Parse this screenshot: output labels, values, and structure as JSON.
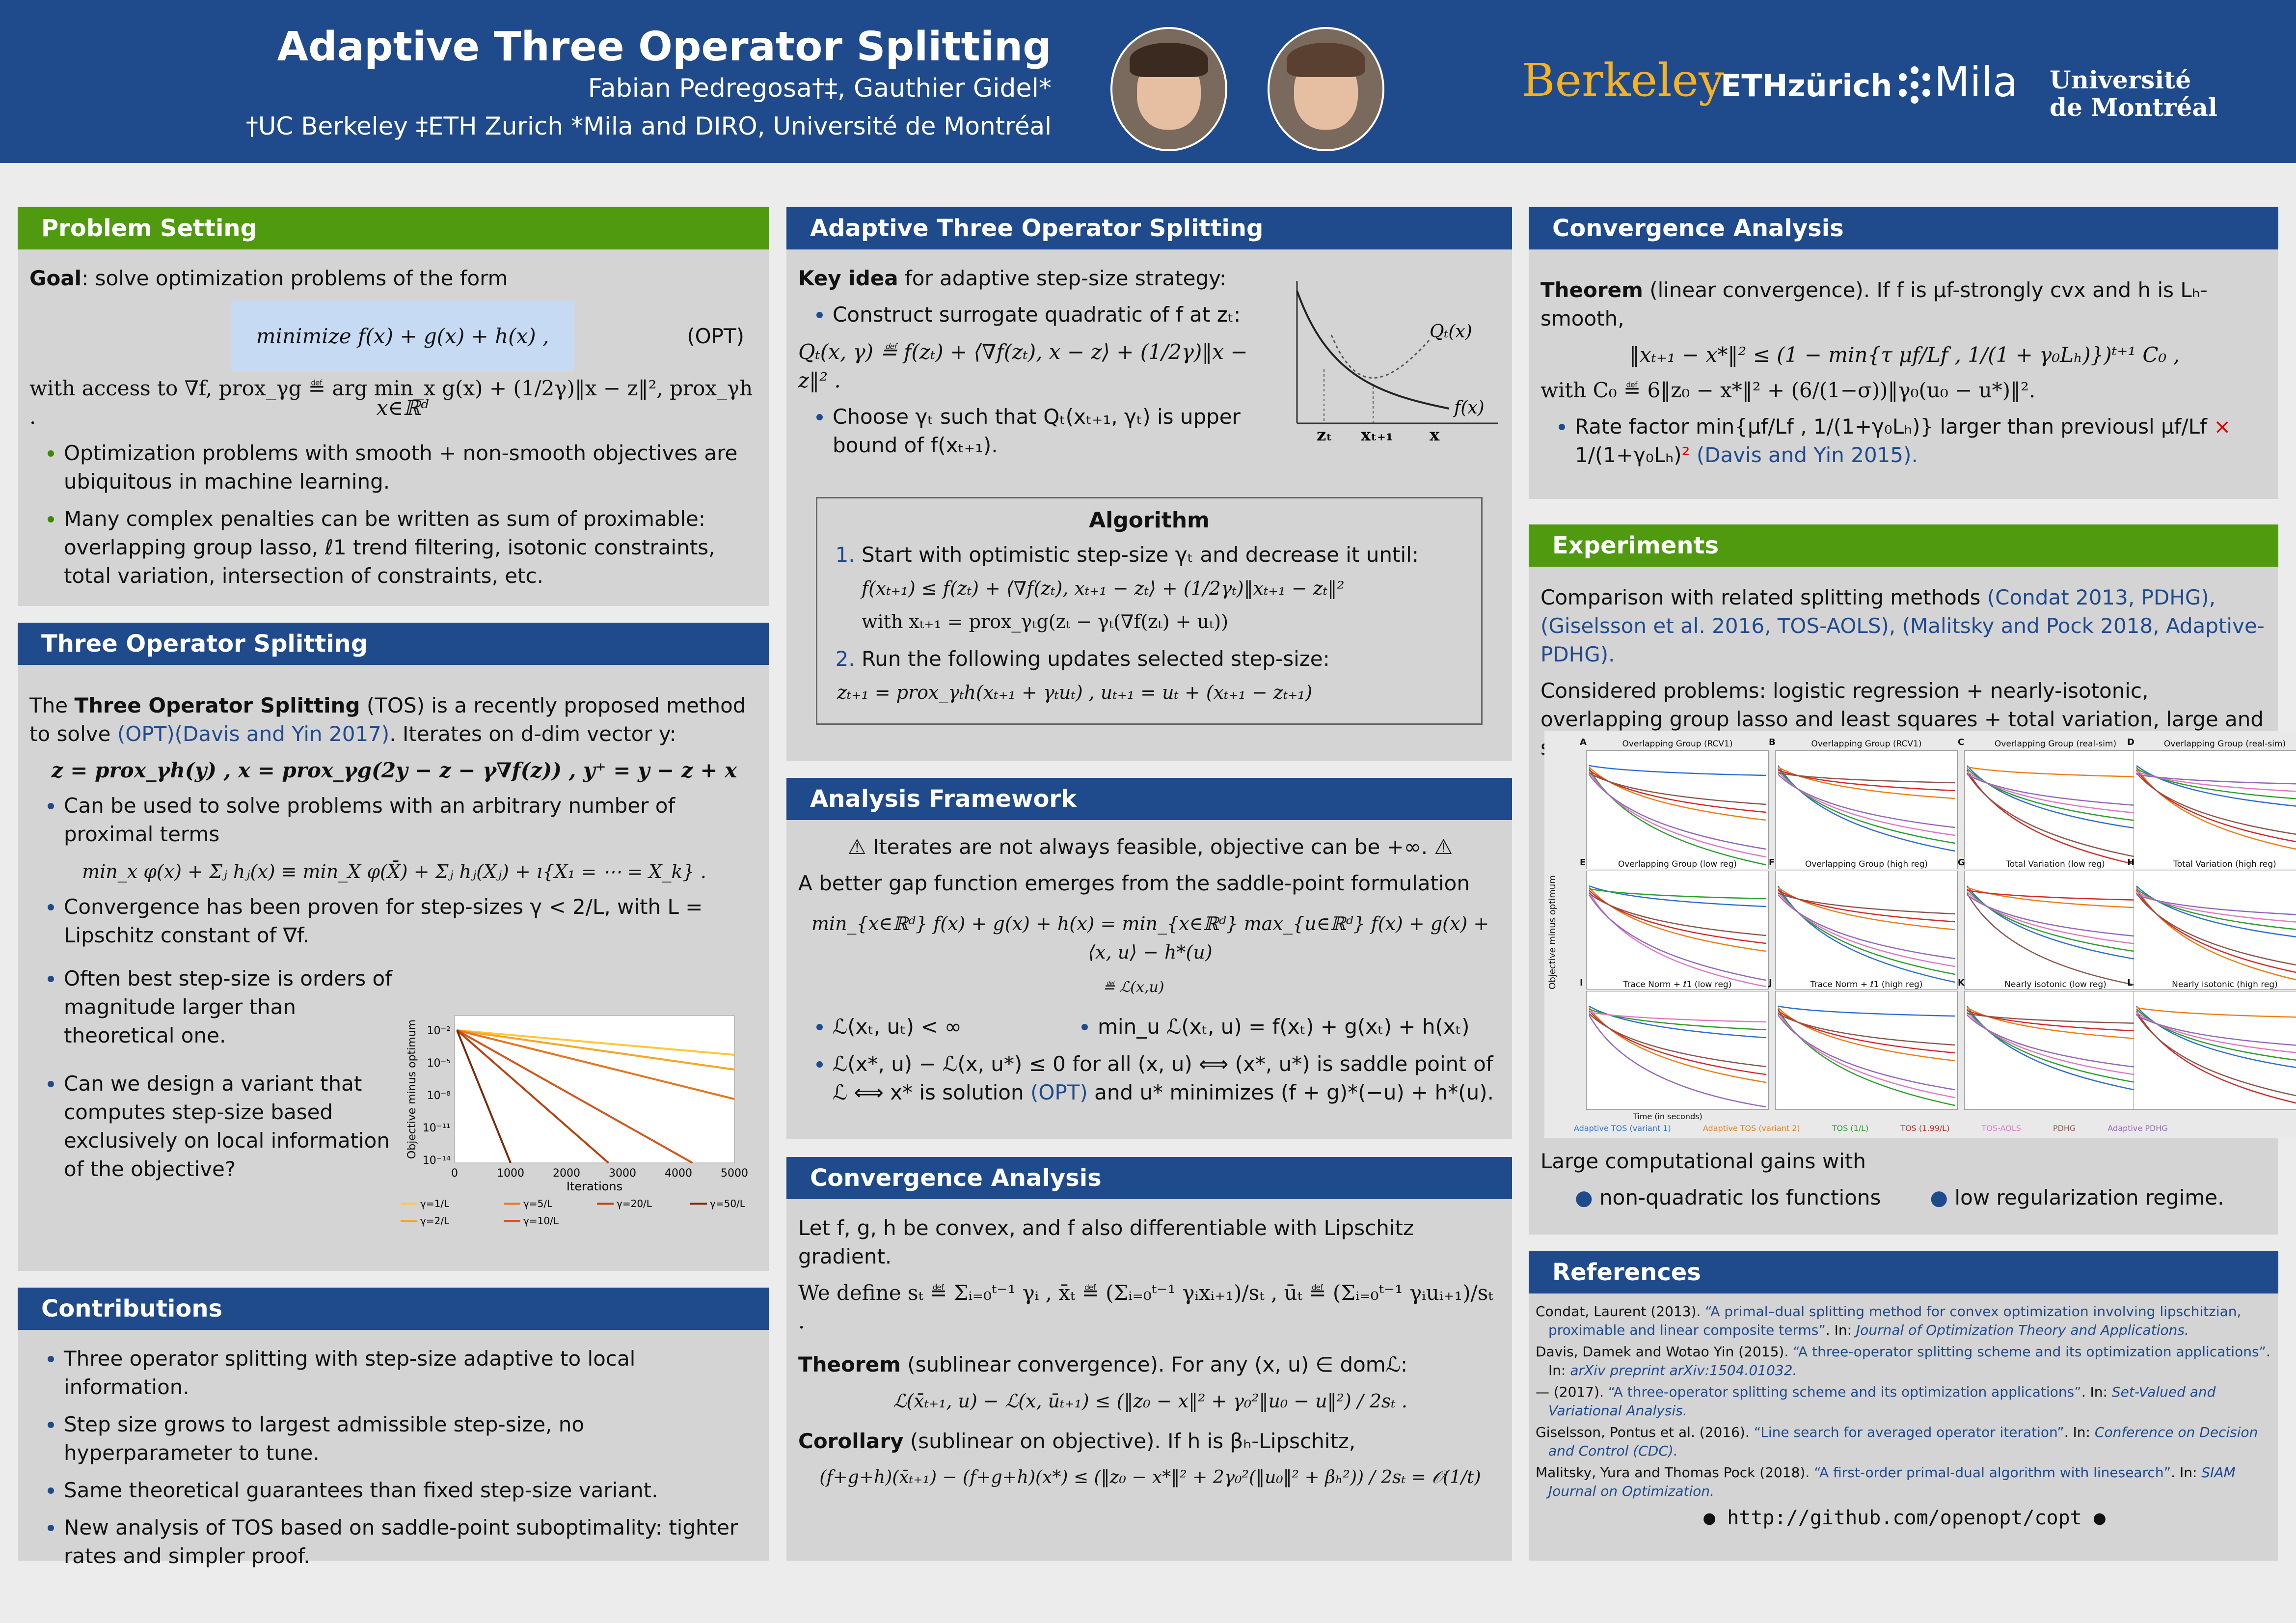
{
  "header": {
    "title": "Adaptive Three Operator Splitting",
    "authors": "Fabian Pedregosa†‡, Gauthier Gidel*",
    "affiliations": "†UC Berkeley ‡ETH Zurich *Mila and DIRO, Université de Montréal",
    "logos": {
      "berkeley": "Berkeley",
      "eth": "ETHzürich",
      "mila": "Mila",
      "udm_line1": "Université",
      "udm_line2": "de Montréal"
    }
  },
  "problem_setting": {
    "title": "Problem Setting",
    "goal_label": "Goal",
    "goal_text": ": solve optimization problems of the form",
    "opt_formula": "minimize f(x) + g(x) + h(x) ,   x∈ℝᵈ",
    "opt_tag": "(OPT)",
    "access_text": "with access to ∇f, prox_γg ≝ arg min_x g(x) + (1/2γ)‖x − z‖², prox_γh .",
    "bullets": [
      "Optimization problems with smooth + non-smooth objectives are ubiquitous in machine learning.",
      "Many complex penalties can be written as sum of proximable: overlapping group lasso, ℓ1 trend filtering, isotonic constraints, total variation, intersection of constraints, etc."
    ]
  },
  "three_op": {
    "title": "Three Operator Splitting",
    "intro_pre": "The ",
    "intro_bold": "Three Operator Splitting",
    "intro_post": " (TOS) is a recently proposed method to solve ",
    "intro_link": "(OPT)(Davis and Yin 2017)",
    "intro_end": ". Iterates on d-dim vector y:",
    "iter_formula": "z = prox_γh(y) ,  x = prox_γg(2y − z − γ∇f(z)) ,  y⁺ = y − z + x",
    "bullet1": "Can be used to solve problems with an arbitrary number of proximal terms",
    "sum_formula": "min_x φ(x) + Σⱼ hⱼ(x) ≡ min_X φ(X̄) + Σⱼ hⱼ(Xⱼ) + ı{X₁ = ⋯ = X_k} .",
    "bullet2": "Convergence has been proven for step-sizes γ < 2/L, with L = Lipschitz constant of ∇f.",
    "bullet3": "Often best step-size is orders of magnitude larger than theoretical one.",
    "bullet4": "Can we design a variant that computes step-size based exclusively on local information of the objective?"
  },
  "contributions": {
    "title": "Contributions",
    "bullets": [
      "Three operator splitting with step-size adaptive to local information.",
      "Step size grows to largest admissible step-size, no hyperparameter to tune.",
      "Same theoretical guarantees than fixed step-size variant.",
      "New analysis of TOS based on saddle-point suboptimality: tighter rates and simpler proof."
    ]
  },
  "adaptive": {
    "title": "Adaptive Three Operator Splitting",
    "key_bold": "Key idea",
    "key_text": " for adaptive step-size strategy:",
    "b1": "Construct surrogate quadratic of f at zₜ:",
    "q_formula": "Qₜ(x, γ) ≝ f(zₜ) + ⟨∇f(zₜ), x − z⟩ + (1/2γ)‖x − z‖² .",
    "b2": "Choose γₜ such that Qₜ(xₜ₊₁, γₜ) is upper bound of f(xₜ₊₁).",
    "fig_labels": {
      "q": "Qₜ(x)",
      "f": "f(x)",
      "zt": "zₜ",
      "xt1": "xₜ₊₁",
      "x": "x"
    },
    "algo_title": "Algorithm",
    "step1": "Start with optimistic step-size γₜ and decrease it until:",
    "step1_formula": "f(xₜ₊₁) ≤ f(zₜ) + ⟨∇f(zₜ), xₜ₊₁ − zₜ⟩ + (1/2γₜ)‖xₜ₊₁ − zₜ‖²",
    "step1_with": "with xₜ₊₁ = prox_γₜg(zₜ − γₜ(∇f(zₜ) + uₜ))",
    "step2": "Run the following updates selected step-size:",
    "step2_formula": "zₜ₊₁ = prox_γₜh(xₜ₊₁ + γₜuₜ) ,    uₜ₊₁ = uₜ + (xₜ₊₁ − zₜ₊₁)"
  },
  "analysis": {
    "title": "Analysis Framework",
    "warning": "Iterates are not always feasible, objective can be +∞.",
    "text": "A better gap function emerges from the saddle-point formulation",
    "formula": "min_{x∈ℝᵈ} f(x) + g(x) + h(x) = min_{x∈ℝᵈ} max_{u∈ℝᵈ} f(x) + g(x) + ⟨x, u⟩ − h*(u)",
    "brace_label": "≝ ℒ(x,u)",
    "b1": "ℒ(xₜ, uₜ) < ∞",
    "b2": "min_u ℒ(xₜ, u) = f(xₜ) + g(xₜ) + h(xₜ)",
    "b3_pre": "ℒ(x*, u) − ℒ(x, u*) ≤ 0 for all (x, u) ⟺ (x*, u*) is saddle point of ℒ ⟺ x* is solution ",
    "b3_link": "(OPT)",
    "b3_post": " and u* minimizes (f + g)*(−u) + h*(u)."
  },
  "conv_mid": {
    "title": "Convergence Analysis",
    "text1": "Let f, g, h be convex, and f also differentiable with Lipschitz gradient.",
    "define": "We define sₜ ≝ Σᵢ₌₀ᵗ⁻¹ γᵢ ,  x̄ₜ ≝ (Σᵢ₌₀ᵗ⁻¹ γᵢxᵢ₊₁)/sₜ ,  ūₜ ≝ (Σᵢ₌₀ᵗ⁻¹ γᵢuᵢ₊₁)/sₜ .",
    "thm_bold": "Theorem",
    "thm_text": " (sublinear convergence). For any (x, u) ∈ domℒ:",
    "thm_formula": "ℒ(x̄ₜ₊₁, u) − ℒ(x, ūₜ₊₁) ≤ (‖z₀ − x‖² + γ₀²‖u₀ − u‖²) / 2sₜ .",
    "cor_bold": "Corollary",
    "cor_text": " (sublinear on objective). If h is βₕ-Lipschitz,",
    "cor_formula": "(f+g+h)(x̄ₜ₊₁) − (f+g+h)(x*) ≤ (‖z₀ − x*‖² + 2γ₀²(‖u₀‖² + βₕ²)) / 2sₜ = 𝒪(1/t)"
  },
  "conv_right": {
    "title": "Convergence Analysis",
    "thm_bold": "Theorem",
    "thm_text": " (linear convergence). If f is μf-strongly cvx and h is Lₕ-smooth,",
    "thm_formula": "‖xₜ₊₁ − x*‖² ≤ (1 − min{τ μf/Lf , 1/(1 + γ₀Lₕ)})ᵗ⁺¹ C₀ ,",
    "c0": "with C₀ ≝ 6‖z₀ − x*‖² + (6/(1−σ))‖γ₀(u₀ − u*)‖².",
    "rate_pre": "Rate factor min{μf/Lf , 1/(1+γ₀Lₕ)} larger than previousl μf/Lf ",
    "rate_cross": "×",
    "rate_mid": " 1/(1+γ₀Lₕ)",
    "rate_sq": "²",
    "rate_link": " (Davis and Yin 2015)."
  },
  "experiments": {
    "title": "Experiments",
    "text1_pre": "Comparison with related splitting methods ",
    "text1_link": "(Condat 2013, PDHG), (Giselsson et al. 2016, TOS-AOLS), (Malitsky and Pock 2018, Adaptive-PDHG).",
    "text2": "Considered problems: logistic regression + nearly-isotonic, overlapping group lasso and least squares + total variation, large and small regularization regime.",
    "subplots": [
      {
        "letter": "A",
        "title": "Overlapping Group (RCV1)"
      },
      {
        "letter": "B",
        "title": "Overlapping Group (RCV1)"
      },
      {
        "letter": "C",
        "title": "Overlapping Group (real-sim)"
      },
      {
        "letter": "D",
        "title": "Overlapping Group (real-sim)"
      },
      {
        "letter": "E",
        "title": "Overlapping Group (low reg)"
      },
      {
        "letter": "F",
        "title": "Overlapping Group (high reg)"
      },
      {
        "letter": "G",
        "title": "Total Variation (low reg)"
      },
      {
        "letter": "H",
        "title": "Total Variation (high reg)"
      },
      {
        "letter": "I",
        "title": "Trace Norm + ℓ1 (low reg)"
      },
      {
        "letter": "J",
        "title": "Trace Norm + ℓ1 (high reg)"
      },
      {
        "letter": "K",
        "title": "Nearly isotonic (low reg)"
      },
      {
        "letter": "L",
        "title": "Nearly isotonic (high reg)"
      }
    ],
    "ylabel": "Objective minus optimum",
    "xlabel": "Time (in seconds)",
    "legend": [
      "Adaptive TOS (variant 1)",
      "Adaptive TOS (variant 2)",
      "TOS (1/L)",
      "TOS (1.99/L)",
      "TOS-AOLS",
      "PDHG",
      "Adaptive PDHG"
    ],
    "gains": "Large computational gains with",
    "gain1": "non-quadratic los functions",
    "gain2": "low regularization regime."
  },
  "step_chart": {
    "ylabel": "Objective minus optimum",
    "xlabel": "Iterations",
    "xticks": [
      "0",
      "1000",
      "2000",
      "3000",
      "4000",
      "5000"
    ],
    "yticks": [
      "10⁻²",
      "10⁻⁵",
      "10⁻⁸",
      "10⁻¹¹",
      "10⁻¹⁴"
    ],
    "legend": [
      "γ=1/L",
      "γ=5/L",
      "γ=20/L",
      "γ=50/L",
      "γ=2/L",
      "γ=10/L"
    ]
  },
  "references": {
    "title": "References",
    "items": [
      {
        "author": "Condat, Laurent (2013). ",
        "title": "“A primal–dual splitting method for convex optimization involving lipschitzian, proximable and linear composite terms”",
        "in": ". In: ",
        "journal": "Journal of Optimization Theory and Applications."
      },
      {
        "author": "Davis, Damek and Wotao Yin (2015). ",
        "title": "“A three-operator splitting scheme and its optimization applications”",
        "in": ". In: ",
        "journal": "arXiv preprint arXiv:1504.01032."
      },
      {
        "author": "— (2017). ",
        "title": "“A three-operator splitting scheme and its optimization applications”",
        "in": ". In: ",
        "journal": "Set-Valued and Variational Analysis."
      },
      {
        "author": "Giselsson, Pontus et al. (2016). ",
        "title": "“Line search for averaged operator iteration”",
        "in": ". In: ",
        "journal": "Conference on Decision and Control (CDC)."
      },
      {
        "author": "Malitsky, Yura and Thomas Pock (2018). ",
        "title": "“A first-order primal-dual algorithm with linesearch”",
        "in": ". In: ",
        "journal": "SIAM Journal on Optimization."
      }
    ],
    "github": "http://github.com/openopt/copt"
  },
  "colors": {
    "header": "#1f4a8c",
    "green": "#4f9a0f",
    "panel": "#d4d4d4",
    "link": "#1f4a8c"
  }
}
